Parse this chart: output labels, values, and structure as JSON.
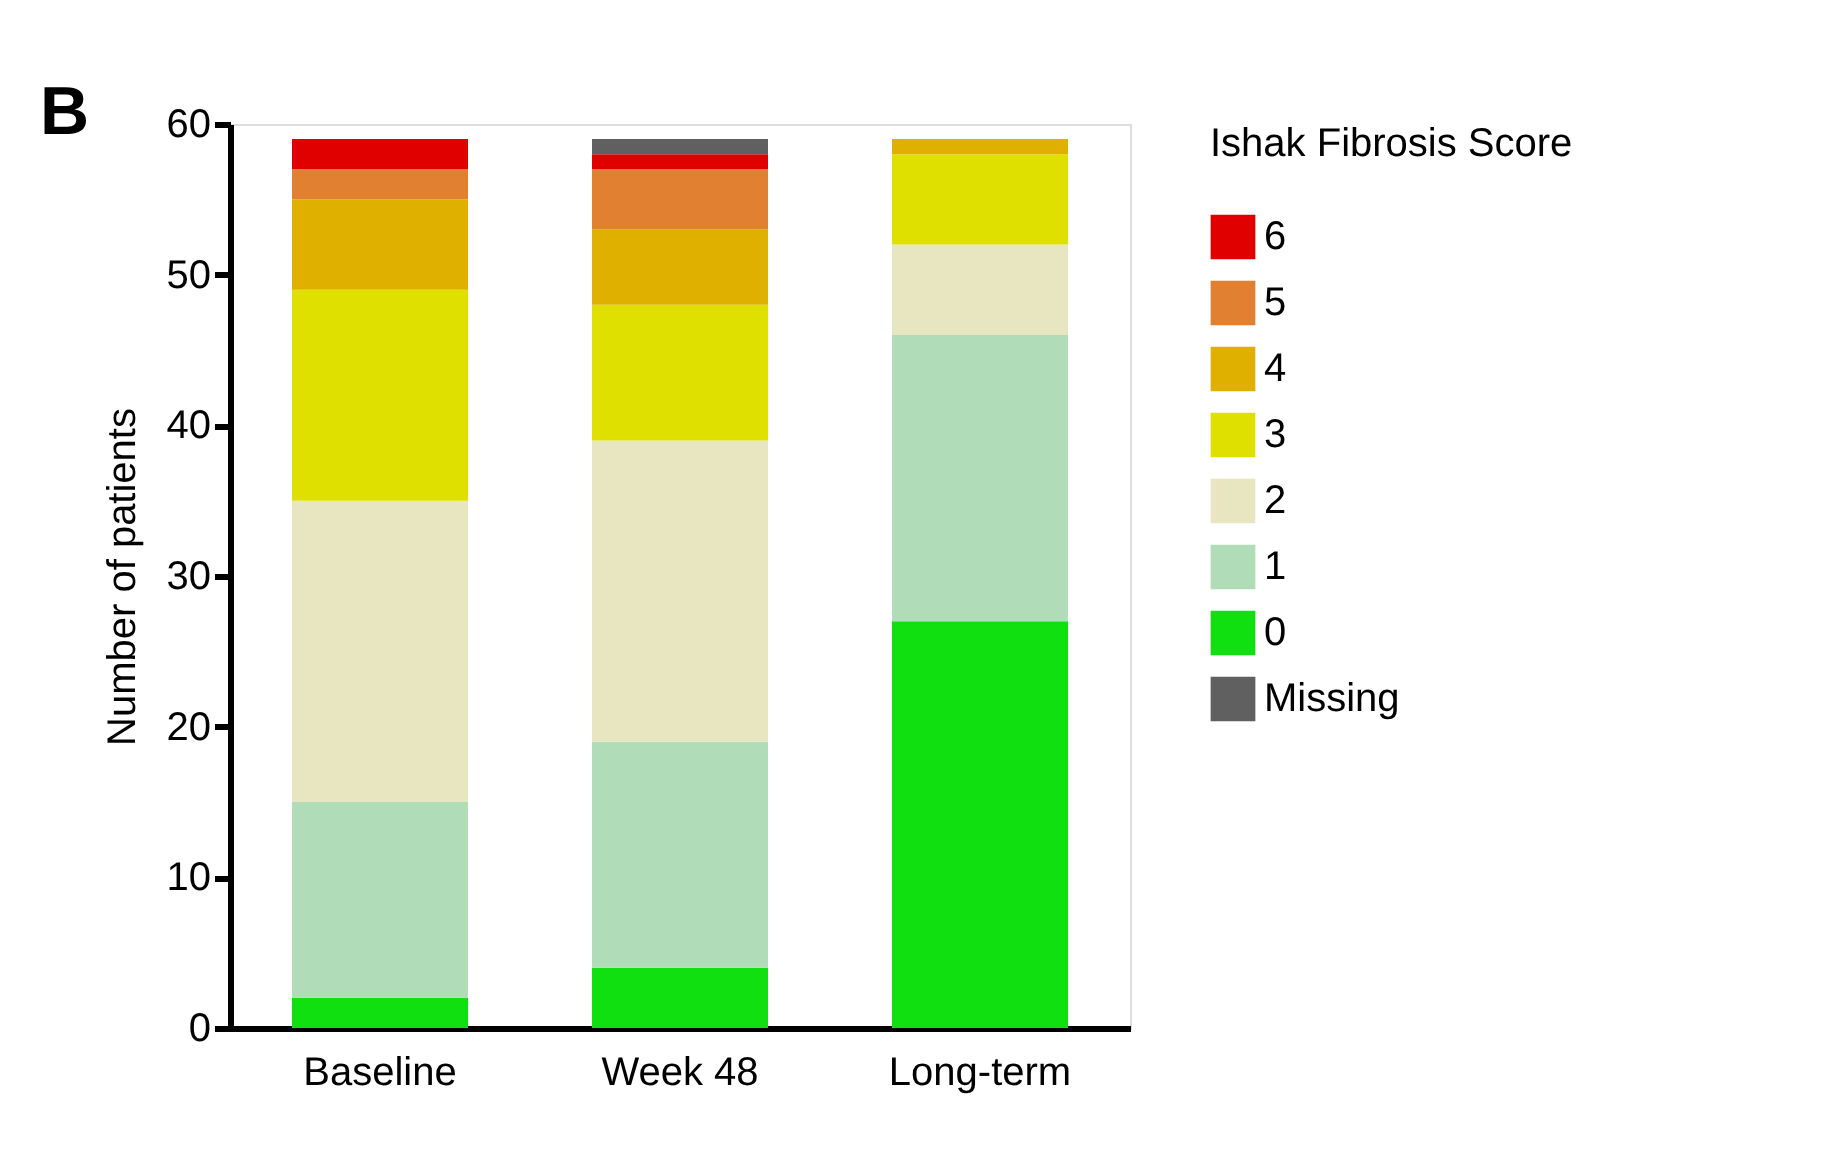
{
  "chart_data": {
    "type": "bar",
    "stacked": true,
    "ylabel": "Number of patients",
    "legend_title": "Ishak Fibrosis Score",
    "annotations": [
      "B"
    ],
    "categories": [
      "Baseline",
      "Week 48",
      "Long-term"
    ],
    "series": [
      {
        "name": "0",
        "color": "#10e010",
        "values": [
          2,
          4,
          27
        ]
      },
      {
        "name": "1",
        "color": "#b0dcb8",
        "values": [
          13,
          15,
          19
        ]
      },
      {
        "name": "2",
        "color": "#e8e6c0",
        "values": [
          20,
          20,
          6
        ]
      },
      {
        "name": "3",
        "color": "#e0e000",
        "values": [
          14,
          9,
          6
        ]
      },
      {
        "name": "4",
        "color": "#e0b000",
        "values": [
          6,
          5,
          1
        ]
      },
      {
        "name": "5",
        "color": "#e08030",
        "values": [
          2,
          4,
          0
        ]
      },
      {
        "name": "6",
        "color": "#e00000",
        "values": [
          2,
          1,
          0
        ]
      },
      {
        "name": "Missing",
        "color": "#606060",
        "values": [
          0,
          1,
          0
        ]
      }
    ],
    "ylim": [
      0,
      60
    ],
    "yticks": [
      0,
      10,
      20,
      30,
      40,
      50,
      60
    ],
    "grid": false,
    "legend": "right"
  }
}
